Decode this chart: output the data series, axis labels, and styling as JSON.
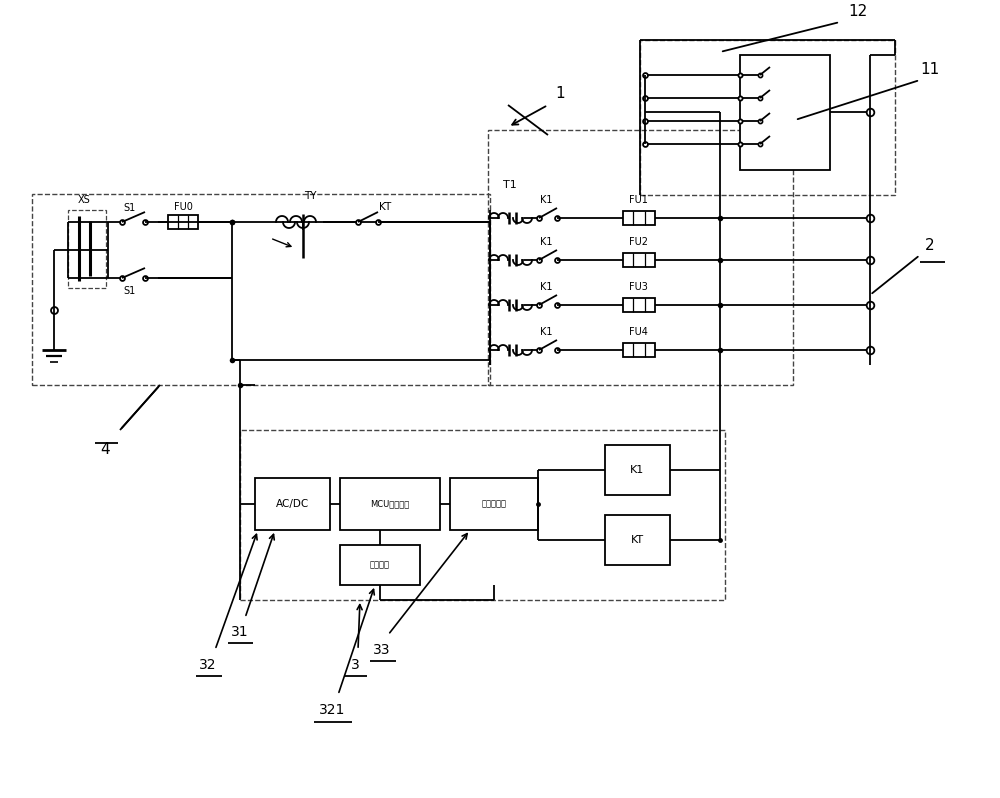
{
  "bg_color": "#ffffff",
  "line_color": "#000000",
  "fig_width": 10.0,
  "fig_height": 7.98,
  "FU_labels": [
    "FU1",
    "FU2",
    "FU3",
    "FU4"
  ]
}
